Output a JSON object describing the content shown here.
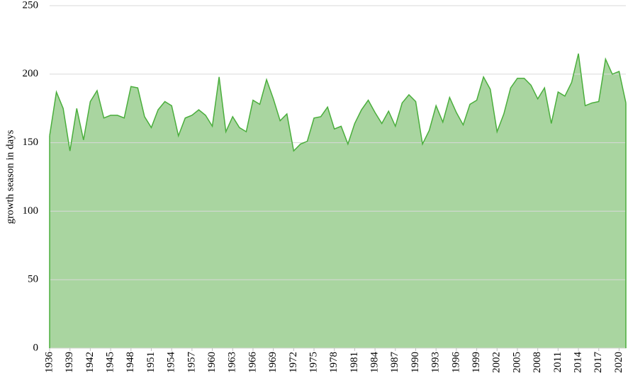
{
  "chart_data": {
    "type": "area",
    "y_label": "growth season in days",
    "x": [
      1936,
      1937,
      1938,
      1939,
      1940,
      1941,
      1942,
      1943,
      1944,
      1945,
      1946,
      1947,
      1948,
      1949,
      1950,
      1951,
      1952,
      1953,
      1954,
      1955,
      1956,
      1957,
      1958,
      1959,
      1960,
      1961,
      1962,
      1963,
      1964,
      1965,
      1966,
      1967,
      1968,
      1969,
      1970,
      1971,
      1972,
      1973,
      1974,
      1975,
      1976,
      1977,
      1978,
      1979,
      1980,
      1981,
      1982,
      1983,
      1984,
      1985,
      1986,
      1987,
      1988,
      1989,
      1990,
      1991,
      1992,
      1993,
      1994,
      1995,
      1996,
      1997,
      1998,
      1999,
      2000,
      2001,
      2002,
      2003,
      2004,
      2005,
      2006,
      2007,
      2008,
      2009,
      2010,
      2011,
      2012,
      2013,
      2014,
      2015,
      2016,
      2017,
      2018,
      2019,
      2020,
      2021
    ],
    "values": [
      155,
      187,
      175,
      144,
      175,
      152,
      180,
      188,
      168,
      170,
      170,
      168,
      191,
      190,
      169,
      161,
      174,
      180,
      177,
      155,
      168,
      170,
      174,
      170,
      162,
      198,
      158,
      169,
      161,
      158,
      181,
      178,
      196,
      182,
      166,
      171,
      144,
      149,
      151,
      168,
      169,
      176,
      160,
      162,
      149,
      164,
      174,
      181,
      172,
      164,
      173,
      162,
      179,
      185,
      180,
      149,
      159,
      177,
      165,
      183,
      172,
      163,
      178,
      181,
      198,
      189,
      158,
      171,
      190,
      197,
      197,
      192,
      182,
      190,
      164,
      187,
      184,
      194,
      215,
      177,
      179,
      180,
      211,
      200,
      202,
      179
    ],
    "color": "#4aae3c",
    "fill": "#a9d5a0",
    "xlim": [
      1936,
      2021
    ],
    "xticks": [
      1936,
      1939,
      1942,
      1945,
      1948,
      1951,
      1954,
      1957,
      1960,
      1963,
      1966,
      1969,
      1972,
      1975,
      1978,
      1981,
      1984,
      1987,
      1990,
      1993,
      1996,
      1999,
      2002,
      2005,
      2008,
      2011,
      2014,
      2017,
      2020
    ],
    "ylim": [
      0,
      250
    ],
    "yticks": [
      0,
      50,
      100,
      150,
      200,
      250
    ],
    "grid": true
  }
}
